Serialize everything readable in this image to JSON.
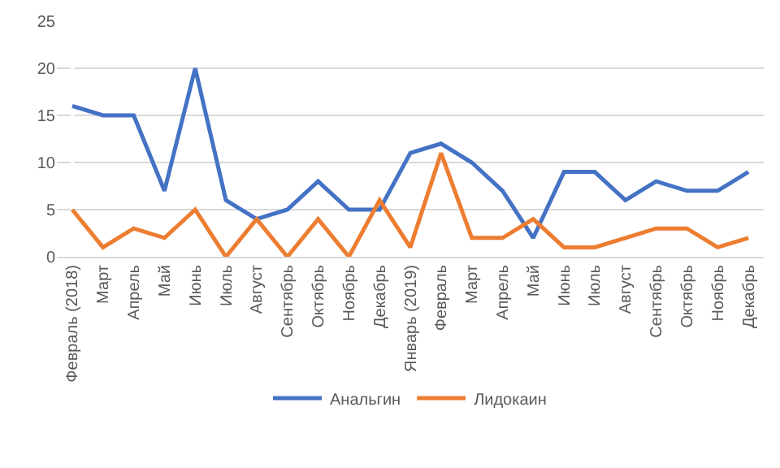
{
  "chart_data": {
    "type": "line",
    "categories": [
      "Февраль (2018)",
      "Март",
      "Апрель",
      "Май",
      "Июнь",
      "Июль",
      "Август",
      "Сентябрь",
      "Октябрь",
      "Ноябрь",
      "Декабрь",
      "Январь (2019)",
      "Февраль",
      "Март",
      "Апрель",
      "Май",
      "Июнь",
      "Июль",
      "Август",
      "Сентябрь",
      "Октябрь",
      "Ноябрь",
      "Декабрь"
    ],
    "series": [
      {
        "name": "Анальгин",
        "color": "#4472c4",
        "values": [
          16,
          15,
          15,
          7,
          20,
          6,
          4,
          5,
          8,
          5,
          5,
          11,
          12,
          10,
          7,
          2,
          9,
          9,
          6,
          8,
          7,
          7,
          9
        ]
      },
      {
        "name": "Лидокаин",
        "color": "#ed7d31",
        "values": [
          5,
          1,
          3,
          2,
          5,
          0,
          4,
          0,
          4,
          0,
          6,
          1,
          11,
          2,
          2,
          4,
          1,
          1,
          2,
          3,
          3,
          1,
          2
        ]
      }
    ],
    "ylim": [
      0,
      25
    ],
    "yticks": [
      0,
      5,
      10,
      15,
      20,
      25
    ],
    "grid": "y",
    "legend": "bottom",
    "marker": "none",
    "line_style": "solid"
  }
}
